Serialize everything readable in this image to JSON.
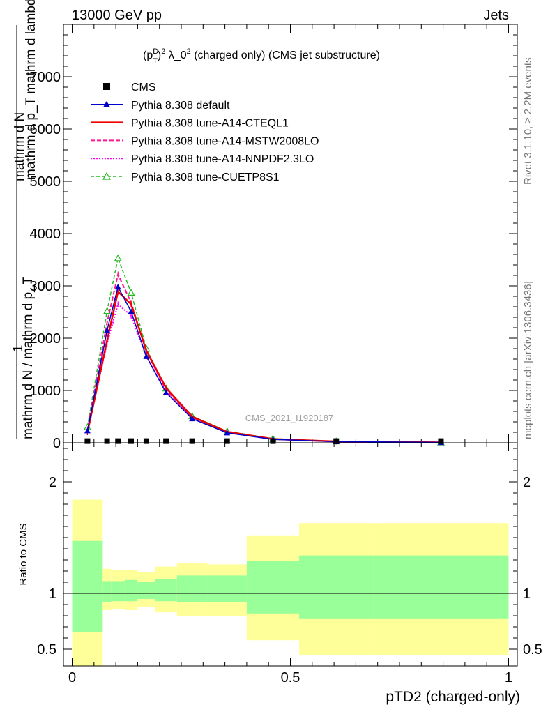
{
  "header": {
    "left": "13000 GeV pp",
    "right": "Jets"
  },
  "plot_title": {
    "p": "(p",
    "sup_d": "D",
    "sub_t": "T",
    "close": ")",
    "sup_2": "2",
    "rest": " λ_0",
    "sup_end": "2",
    "tail": " (charged only) (CMS jet substructure)"
  },
  "side_text": {
    "rivet": "Rivet 3.1.10, ≥ 2.2M events",
    "mcplots": "mcplots.cern.ch [arXiv:1306.3436]"
  },
  "watermark": "CMS_2021_I1920187",
  "y_axis_label": {
    "line_top": "mathrm d N",
    "line_top2": "mathrm d p_T mathrm d lambda",
    "line_one": "1",
    "line_bottom": "mathrm d N / mathrm d p_T"
  },
  "ratio_ylabel": "Ratio to CMS",
  "x_axis_label": "pTD2 (charged-only)",
  "legend": [
    {
      "label": "CMS",
      "color": "#000000",
      "style": "square"
    },
    {
      "label": "Pythia 8.308 default",
      "color": "#0000cc",
      "style": "solid-triangle"
    },
    {
      "label": "Pythia 8.308 tune-A14-CTEQL1",
      "color": "#ee0000",
      "style": "solid-thick"
    },
    {
      "label": "Pythia 8.308 tune-A14-MSTW2008LO",
      "color": "#ff1493",
      "style": "dashed"
    },
    {
      "label": "Pythia 8.308 tune-A14-NNPDF2.3LO",
      "color": "#ff00ff",
      "style": "dotted"
    },
    {
      "label": "Pythia 8.308 tune-CUETP8S1",
      "color": "#22bb22",
      "style": "dashed-open-triangle"
    }
  ],
  "chart_data": [
    {
      "type": "line",
      "panel": "main",
      "x": [
        0.035,
        0.08,
        0.105,
        0.135,
        0.17,
        0.215,
        0.275,
        0.355,
        0.46,
        0.605,
        0.845
      ],
      "xlim": [
        -0.02,
        1.02
      ],
      "ylim": [
        0,
        8000
      ],
      "yticks": [
        0,
        1000,
        2000,
        3000,
        4000,
        5000,
        6000,
        7000
      ],
      "ytick_labels": [
        "0",
        "1000",
        "2000",
        "3000",
        "4000",
        "5000",
        "6000",
        "7000"
      ],
      "xticks": [
        0,
        0.5,
        1
      ],
      "xtick_labels": [
        "0",
        "0.5",
        "1"
      ],
      "series": [
        {
          "name": "CMS",
          "values": [
            5,
            5,
            5,
            5,
            5,
            5,
            5,
            5,
            5,
            5,
            5
          ]
        },
        {
          "name": "Pythia 8.308 default",
          "values": [
            230,
            2150,
            2980,
            2510,
            1650,
            960,
            460,
            190,
            65,
            22,
            6
          ]
        },
        {
          "name": "Pythia 8.308 tune-A14-CTEQL1",
          "values": [
            200,
            1960,
            2890,
            2650,
            1760,
            1050,
            500,
            210,
            72,
            25,
            7
          ]
        },
        {
          "name": "Pythia 8.308 tune-A14-MSTW2008LO",
          "values": [
            240,
            2300,
            3220,
            2680,
            1750,
            1010,
            480,
            200,
            70,
            24,
            7
          ]
        },
        {
          "name": "Pythia 8.308 tune-A14-NNPDF2.3LO",
          "values": [
            210,
            1900,
            2650,
            2430,
            1650,
            980,
            470,
            195,
            68,
            23,
            6
          ]
        },
        {
          "name": "Pythia 8.308 tune-CUETP8S1",
          "values": [
            300,
            2520,
            3530,
            2870,
            1800,
            1040,
            510,
            220,
            80,
            28,
            8
          ]
        }
      ]
    },
    {
      "type": "area",
      "panel": "ratio",
      "ylim": [
        0.35,
        2.35
      ],
      "yticks": [
        0.5,
        1,
        2
      ],
      "ytick_labels": [
        "0.5",
        "1",
        "2"
      ],
      "bin_edges": [
        0.0,
        0.07,
        0.09,
        0.12,
        0.15,
        0.19,
        0.24,
        0.31,
        0.4,
        0.52,
        0.69,
        1.0
      ],
      "band_outer": {
        "low": [
          0.35,
          0.85,
          0.86,
          0.85,
          0.88,
          0.83,
          0.8,
          0.8,
          0.58,
          0.45,
          0.45,
          0.49
        ],
        "high": [
          1.84,
          1.22,
          1.21,
          1.21,
          1.19,
          1.24,
          1.27,
          1.26,
          1.52,
          1.63,
          1.63,
          1.61
        ]
      },
      "band_inner": {
        "low": [
          0.65,
          0.92,
          0.93,
          0.93,
          0.95,
          0.93,
          0.92,
          0.92,
          0.82,
          0.77,
          0.77,
          0.79
        ],
        "high": [
          1.47,
          1.11,
          1.11,
          1.12,
          1.1,
          1.13,
          1.16,
          1.16,
          1.29,
          1.34,
          1.34,
          1.33
        ]
      },
      "reference_line": 1.0
    }
  ],
  "colors": {
    "band_outer": "#ffff99",
    "band_inner": "#99ff99"
  }
}
